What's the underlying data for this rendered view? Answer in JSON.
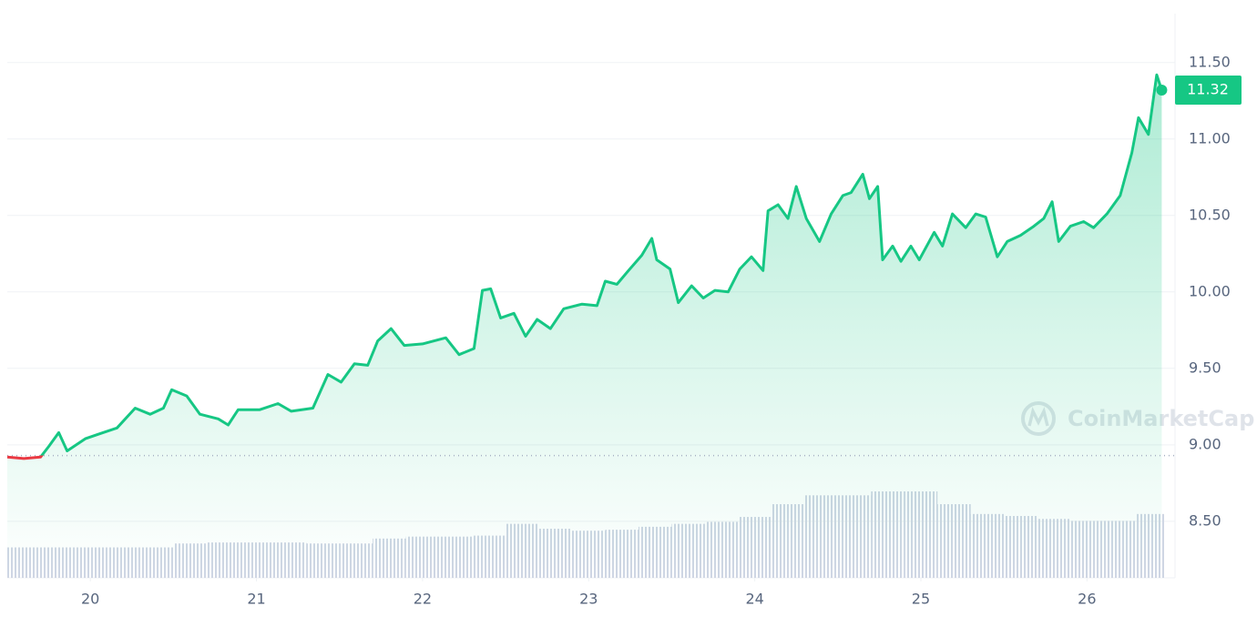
{
  "chart_data": {
    "type": "line",
    "brand": "CoinMarketCap",
    "x": [
      19.5,
      19.6,
      19.7,
      19.75,
      19.81,
      19.86,
      19.97,
      20.05,
      20.16,
      20.27,
      20.36,
      20.44,
      20.49,
      20.58,
      20.66,
      20.77,
      20.83,
      20.89,
      21.02,
      21.13,
      21.21,
      21.34,
      21.43,
      21.51,
      21.59,
      21.67,
      21.73,
      21.81,
      21.89,
      22.0,
      22.14,
      22.22,
      22.31,
      22.36,
      22.41,
      22.47,
      22.55,
      22.62,
      22.69,
      22.77,
      22.85,
      22.96,
      23.05,
      23.1,
      23.17,
      23.24,
      23.32,
      23.38,
      23.41,
      23.49,
      23.54,
      23.62,
      23.69,
      23.76,
      23.84,
      23.91,
      23.98,
      24.05,
      24.08,
      24.14,
      24.2,
      24.25,
      24.31,
      24.39,
      24.46,
      24.53,
      24.58,
      24.65,
      24.69,
      24.74,
      24.77,
      24.83,
      24.88,
      24.94,
      24.99,
      25.08,
      25.13,
      25.19,
      25.27,
      25.33,
      25.39,
      25.46,
      25.52,
      25.6,
      25.68,
      25.74,
      25.79,
      25.83,
      25.9,
      25.98,
      26.04,
      26.12,
      26.2,
      26.27,
      26.31,
      26.37,
      26.42,
      26.45
    ],
    "series": [
      {
        "color": "#16c784",
        "below_color": "#ea3943",
        "values": [
          8.92,
          8.91,
          8.92,
          8.99,
          9.08,
          8.96,
          9.04,
          9.07,
          9.11,
          9.24,
          9.2,
          9.24,
          9.36,
          9.32,
          9.2,
          9.17,
          9.13,
          9.23,
          9.23,
          9.27,
          9.22,
          9.24,
          9.46,
          9.41,
          9.53,
          9.52,
          9.68,
          9.76,
          9.65,
          9.66,
          9.7,
          9.59,
          9.63,
          10.01,
          10.02,
          9.83,
          9.86,
          9.71,
          9.82,
          9.76,
          9.89,
          9.92,
          9.91,
          10.07,
          10.05,
          10.14,
          10.24,
          10.35,
          10.21,
          10.15,
          9.93,
          10.04,
          9.96,
          10.01,
          10.0,
          10.15,
          10.23,
          10.14,
          10.53,
          10.57,
          10.48,
          10.69,
          10.48,
          10.33,
          10.51,
          10.63,
          10.65,
          10.77,
          10.61,
          10.69,
          10.21,
          10.3,
          10.2,
          10.3,
          10.21,
          10.39,
          10.3,
          10.51,
          10.42,
          10.51,
          10.49,
          10.23,
          10.33,
          10.37,
          10.43,
          10.48,
          10.59,
          10.33,
          10.43,
          10.46,
          10.42,
          10.51,
          10.63,
          10.91,
          11.14,
          11.03,
          11.42,
          11.32
        ]
      }
    ],
    "baseline": 8.93,
    "last_price": 11.32,
    "last_price_label": "11.32",
    "volume": {
      "color": "#cfd6e4",
      "x": [
        19.5,
        19.7,
        19.9,
        20.1,
        20.3,
        20.5,
        20.7,
        20.9,
        21.1,
        21.3,
        21.5,
        21.7,
        21.9,
        22.1,
        22.3,
        22.5,
        22.7,
        22.9,
        23.1,
        23.3,
        23.5,
        23.7,
        23.9,
        24.1,
        24.3,
        24.5,
        24.7,
        24.9,
        25.1,
        25.3,
        25.5,
        25.7,
        25.9,
        26.1,
        26.3
      ],
      "values": [
        31,
        31,
        31,
        31,
        31,
        35,
        36,
        36,
        36,
        35,
        35,
        40,
        42,
        42,
        43,
        55,
        50,
        48,
        49,
        52,
        55,
        57,
        62,
        75,
        84,
        84,
        88,
        88,
        75,
        65,
        63,
        60,
        58,
        58,
        65
      ]
    },
    "xlim": [
      19.5,
      26.53
    ],
    "xticks": [
      20,
      21,
      22,
      23,
      24,
      25,
      26
    ],
    "ylim": [
      8.13,
      11.82
    ],
    "yticks": [
      {
        "value": 8.5,
        "label": "8.50"
      },
      {
        "value": 9.0,
        "label": "9.00"
      },
      {
        "value": 9.5,
        "label": "9.50"
      },
      {
        "value": 10.0,
        "label": "10.00"
      },
      {
        "value": 10.5,
        "label": "10.50"
      },
      {
        "value": 11.0,
        "label": "11.00"
      },
      {
        "value": 11.5,
        "label": "11.50"
      }
    ],
    "grid": true
  }
}
